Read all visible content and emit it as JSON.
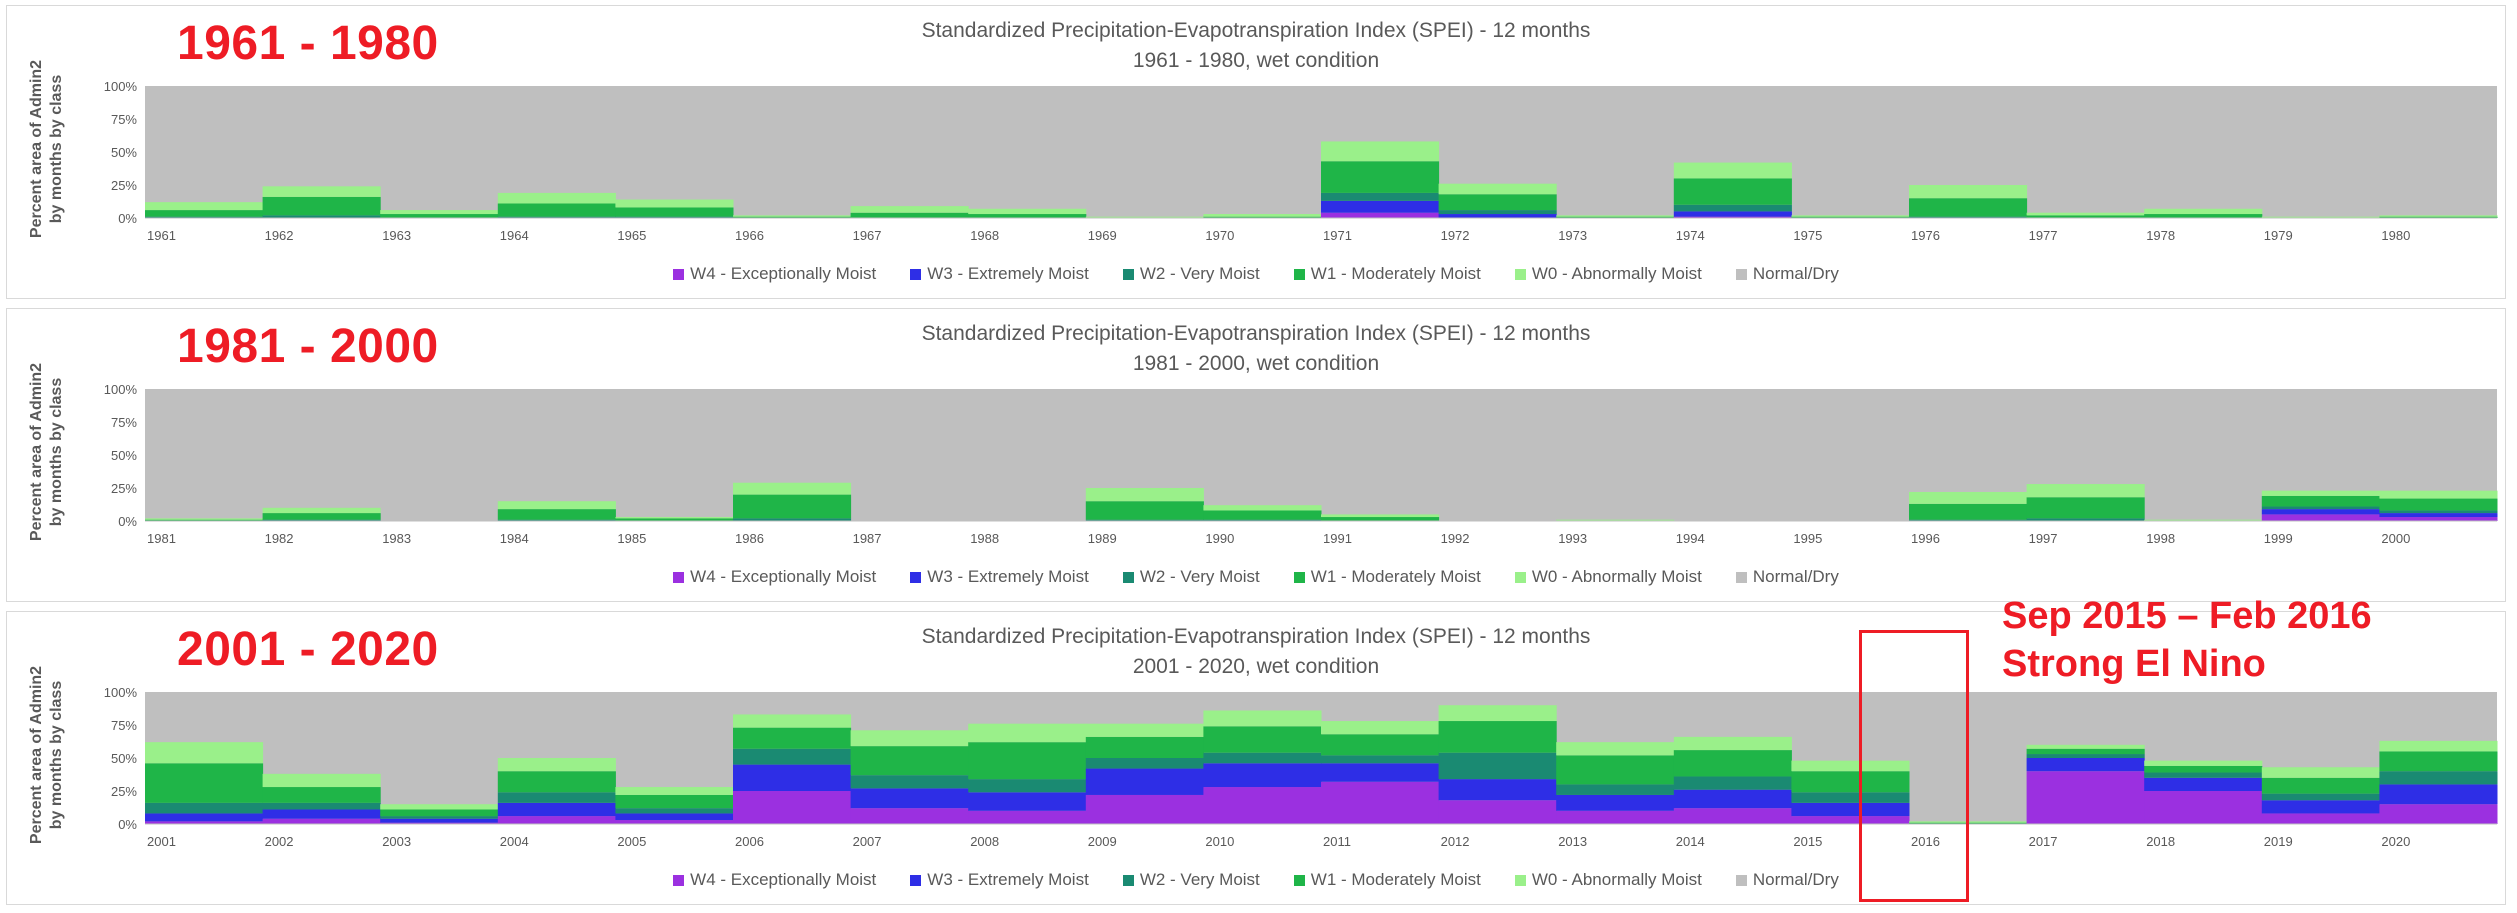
{
  "colors": {
    "W4": "#9b30e0",
    "W3": "#2e2ee6",
    "W2": "#1a8a72",
    "W1": "#1fb548",
    "W0": "#9af08a",
    "ND": "#bfbfbf",
    "highlight": "#ee1c25"
  },
  "annotation": {
    "line1": "Sep 2015 – Feb 2016",
    "line2": "Strong El Nino"
  },
  "chart_data": [
    {
      "type": "area",
      "title": "Standardized Precipitation-Evapotranspiration Index (SPEI) - 12 months",
      "subtitle": "1961 - 1980, wet condition",
      "period_label": "1961 - 1980",
      "ylabel_line1": "Percent area of Admin2",
      "ylabel_line2": "by months by class",
      "ylim": [
        0,
        100
      ],
      "yticks": [
        "0%",
        "25%",
        "50%",
        "75%",
        "100%"
      ],
      "stacked": true,
      "x": [
        "1961",
        "1962",
        "1963",
        "1964",
        "1965",
        "1966",
        "1967",
        "1968",
        "1969",
        "1970",
        "1971",
        "1972",
        "1973",
        "1974",
        "1975",
        "1976",
        "1977",
        "1978",
        "1979",
        "1980"
      ],
      "series": [
        {
          "name": "W4 - Exceptionally Moist",
          "key": "W4",
          "values": [
            0,
            0,
            0,
            0,
            0,
            0,
            0,
            0,
            0,
            0,
            4,
            0,
            0,
            1,
            0,
            0,
            0,
            0,
            0,
            0
          ]
        },
        {
          "name": "W3 - Extremely Moist",
          "key": "W3",
          "values": [
            0,
            0,
            0,
            0,
            0,
            0,
            0,
            0,
            0,
            0,
            9,
            3,
            0,
            4,
            0,
            0,
            0,
            0,
            0,
            0
          ]
        },
        {
          "name": "W2 - Very Moist",
          "key": "W2",
          "values": [
            1,
            2,
            0,
            1,
            1,
            0,
            0,
            0,
            0,
            0,
            6,
            3,
            0,
            5,
            0,
            1,
            0,
            0,
            0,
            0
          ]
        },
        {
          "name": "W1 - Moderately Moist",
          "key": "W1",
          "values": [
            5,
            14,
            3,
            10,
            7,
            1,
            4,
            3,
            0,
            1,
            24,
            12,
            1,
            20,
            1,
            14,
            2,
            3,
            0,
            1
          ]
        },
        {
          "name": "W0 - Abnormally Moist",
          "key": "W0",
          "values": [
            6,
            8,
            3,
            8,
            6,
            1,
            5,
            4,
            1,
            2,
            15,
            8,
            1,
            12,
            1,
            10,
            2,
            4,
            1,
            1
          ]
        },
        {
          "name": "Normal/Dry",
          "key": "ND",
          "values": [
            88,
            76,
            94,
            81,
            86,
            98,
            91,
            93,
            99,
            97,
            42,
            74,
            98,
            58,
            98,
            75,
            96,
            93,
            99,
            98
          ]
        }
      ]
    },
    {
      "type": "area",
      "title": "Standardized Precipitation-Evapotranspiration Index (SPEI) - 12 months",
      "subtitle": "1981 - 2000, wet condition",
      "period_label": "1981 - 2000",
      "ylabel_line1": "Percent area of Admin2",
      "ylabel_line2": "by months by class",
      "ylim": [
        0,
        100
      ],
      "yticks": [
        "0%",
        "25%",
        "50%",
        "75%",
        "100%"
      ],
      "stacked": true,
      "x": [
        "1981",
        "1982",
        "1983",
        "1984",
        "1985",
        "1986",
        "1987",
        "1988",
        "1989",
        "1990",
        "1991",
        "1992",
        "1993",
        "1994",
        "1995",
        "1996",
        "1997",
        "1998",
        "1999",
        "2000"
      ],
      "series": [
        {
          "name": "W4 - Exceptionally Moist",
          "key": "W4",
          "values": [
            0,
            0,
            0,
            0,
            0,
            0,
            0,
            0,
            0,
            0,
            0,
            0,
            0,
            0,
            0,
            0,
            0,
            0,
            5,
            3
          ]
        },
        {
          "name": "W3 - Extremely Moist",
          "key": "W3",
          "values": [
            0,
            0,
            0,
            0,
            0,
            0,
            0,
            0,
            0,
            0,
            0,
            0,
            0,
            0,
            0,
            0,
            0,
            0,
            4,
            3
          ]
        },
        {
          "name": "W2 - Very Moist",
          "key": "W2",
          "values": [
            0,
            1,
            0,
            1,
            0,
            2,
            0,
            0,
            1,
            1,
            0,
            0,
            0,
            0,
            0,
            1,
            2,
            0,
            2,
            2
          ]
        },
        {
          "name": "W1 - Moderately Moist",
          "key": "W1",
          "values": [
            1,
            5,
            0,
            8,
            2,
            18,
            0,
            0,
            14,
            7,
            3,
            0,
            0,
            0,
            0,
            12,
            16,
            0,
            8,
            9
          ]
        },
        {
          "name": "W0 - Abnormally Moist",
          "key": "W0",
          "values": [
            1,
            4,
            0,
            6,
            1,
            9,
            0,
            0,
            10,
            4,
            2,
            0,
            1,
            0,
            0,
            9,
            10,
            1,
            4,
            6
          ]
        },
        {
          "name": "Normal/Dry",
          "key": "ND",
          "values": [
            98,
            90,
            100,
            85,
            97,
            71,
            100,
            100,
            75,
            88,
            95,
            100,
            99,
            100,
            100,
            78,
            72,
            99,
            77,
            77
          ]
        }
      ]
    },
    {
      "type": "area",
      "title": "Standardized Precipitation-Evapotranspiration Index (SPEI) - 12 months",
      "subtitle": "2001 - 2020, wet condition",
      "period_label": "2001 - 2020",
      "ylabel_line1": "Percent area of Admin2",
      "ylabel_line2": "by months by class",
      "ylim": [
        0,
        100
      ],
      "yticks": [
        "0%",
        "25%",
        "50%",
        "75%",
        "100%"
      ],
      "stacked": true,
      "x": [
        "2001",
        "2002",
        "2003",
        "2004",
        "2005",
        "2006",
        "2007",
        "2008",
        "2009",
        "2010",
        "2011",
        "2012",
        "2013",
        "2014",
        "2015",
        "2016",
        "2017",
        "2018",
        "2019",
        "2020"
      ],
      "series": [
        {
          "name": "W4 - Exceptionally Moist",
          "key": "W4",
          "values": [
            2,
            4,
            1,
            6,
            3,
            25,
            12,
            10,
            22,
            28,
            32,
            18,
            10,
            12,
            6,
            0,
            40,
            25,
            8,
            15
          ]
        },
        {
          "name": "W3 - Extremely Moist",
          "key": "W3",
          "values": [
            6,
            7,
            3,
            10,
            5,
            20,
            15,
            14,
            20,
            18,
            14,
            16,
            12,
            14,
            10,
            0,
            10,
            10,
            10,
            15
          ]
        },
        {
          "name": "W2 - Very Moist",
          "key": "W2",
          "values": [
            8,
            5,
            2,
            8,
            4,
            12,
            10,
            10,
            8,
            8,
            6,
            20,
            8,
            10,
            8,
            0,
            3,
            4,
            5,
            10
          ]
        },
        {
          "name": "W1 - Moderately Moist",
          "key": "W1",
          "values": [
            30,
            12,
            5,
            16,
            10,
            16,
            22,
            28,
            16,
            20,
            16,
            24,
            22,
            20,
            16,
            1,
            4,
            5,
            12,
            15
          ]
        },
        {
          "name": "W0 - Abnormally Moist",
          "key": "W0",
          "values": [
            16,
            10,
            4,
            10,
            6,
            10,
            12,
            14,
            10,
            12,
            10,
            12,
            10,
            10,
            8,
            1,
            3,
            4,
            8,
            8
          ]
        },
        {
          "name": "Normal/Dry",
          "key": "ND",
          "values": [
            38,
            62,
            85,
            50,
            72,
            17,
            29,
            24,
            24,
            14,
            22,
            10,
            38,
            34,
            52,
            98,
            40,
            52,
            57,
            37
          ]
        }
      ]
    }
  ]
}
